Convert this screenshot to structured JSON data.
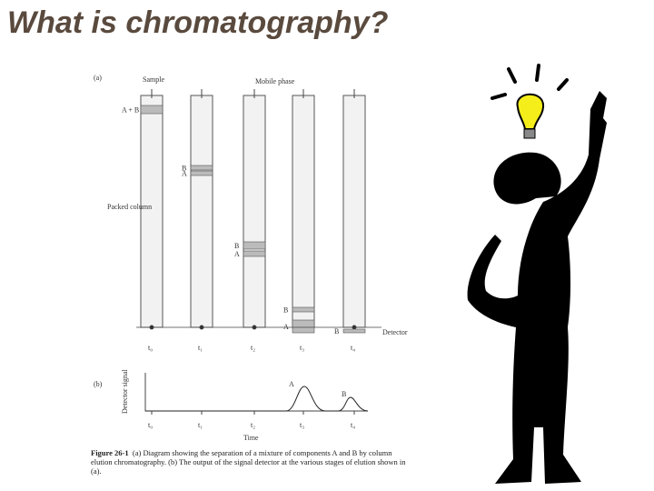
{
  "title": "What is chromatography?",
  "figure_a": {
    "panel": "(a)",
    "sample": "Sample",
    "mobile_phase": "Mobile phase",
    "packed_column": "Packed column",
    "detector": "Detector",
    "band_labels": [
      "A + B",
      "B",
      "A",
      "B",
      "A",
      "B",
      "A",
      "B"
    ],
    "times": [
      "t₀",
      "t₁",
      "t₂",
      "t₃",
      "t₄"
    ]
  },
  "figure_b": {
    "panel": "(b)",
    "y_label": "Detector signal",
    "x_label": "Time",
    "peaks": [
      "A",
      "B"
    ],
    "times": [
      "t₀",
      "t₁",
      "t₂",
      "t₃",
      "t₄"
    ]
  },
  "caption": {
    "label": "Figure 26-1",
    "text": "(a) Diagram showing the separation of a mixture of components A and B by column elution chromatography. (b) The output of the signal detector at the various stages of elution shown in (a)."
  }
}
